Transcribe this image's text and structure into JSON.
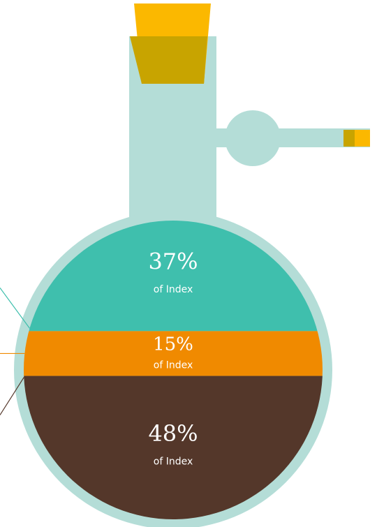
{
  "chart_data": {
    "type": "flask",
    "series": [
      {
        "color": "#3fbfad",
        "values": [
          37
        ],
        "value_labels": [
          "37%"
        ]
      },
      {
        "color": "#f08a00",
        "values": [
          15
        ],
        "value_labels": [
          "15%"
        ]
      },
      {
        "color": "#54372a",
        "values": [
          48
        ],
        "value_labels": [
          "48%"
        ]
      }
    ],
    "sublabel": "of Index"
  }
}
